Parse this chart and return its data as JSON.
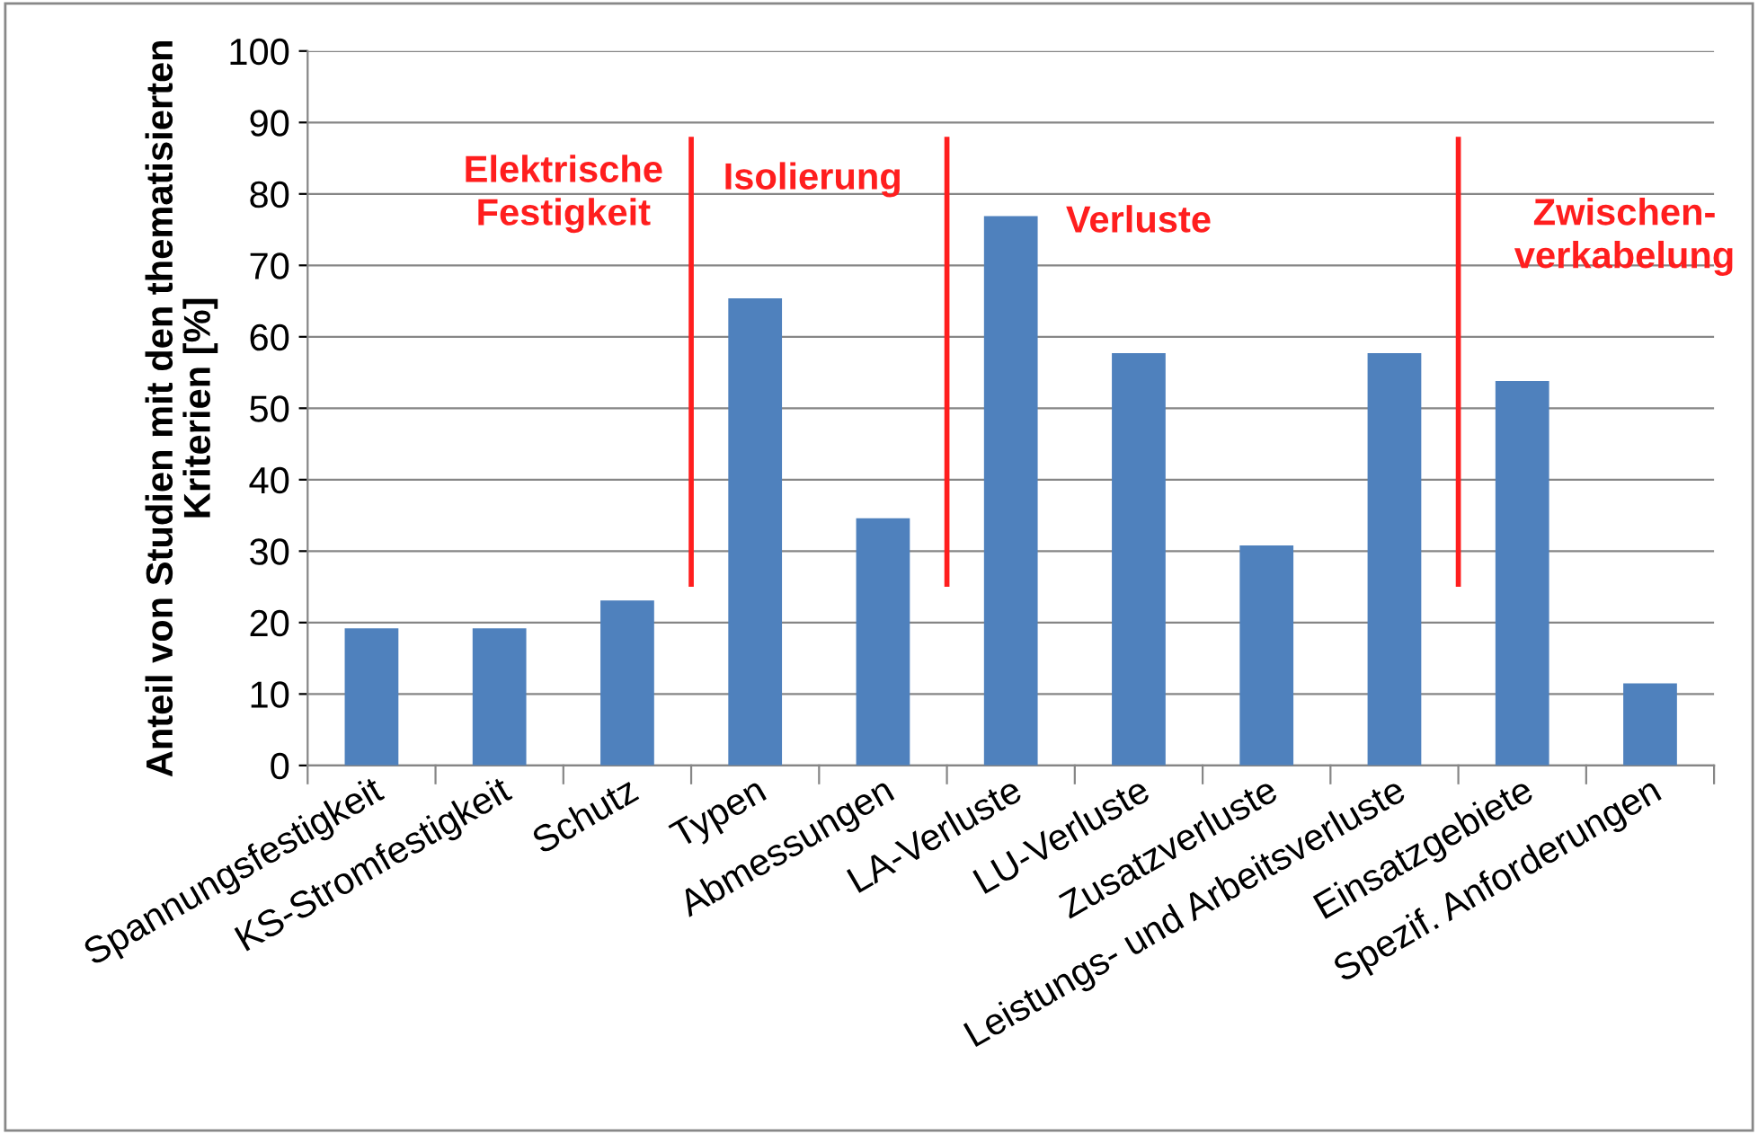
{
  "chart_data": {
    "type": "bar",
    "ylabel": "Anteil von Studien mit den thematisierten\nKriterien [%]",
    "categories": [
      "Spannungsfestigkeit",
      "KS-Stromfestigkeit",
      "Schutz",
      "Typen",
      "Abmessungen",
      "LA-Verluste",
      "LU-Verluste",
      "Zusatzverluste",
      "Leistungs- und Arbeitsverluste",
      "Einsatzgebiete",
      "Spezif. Anforderungen"
    ],
    "values": [
      19.2,
      19.2,
      23.1,
      65.4,
      34.6,
      76.9,
      57.7,
      30.8,
      57.7,
      53.8,
      11.5
    ],
    "color": "#4f81bd",
    "ylim": [
      0,
      100
    ],
    "yticks": [
      0,
      10,
      20,
      30,
      40,
      50,
      60,
      70,
      80,
      90,
      100
    ],
    "grid": "y",
    "annotations": [
      "Elektrische\nFestigkeit",
      "Isolierung",
      "Verluste",
      "Zwischen-\nverkabelung"
    ]
  }
}
